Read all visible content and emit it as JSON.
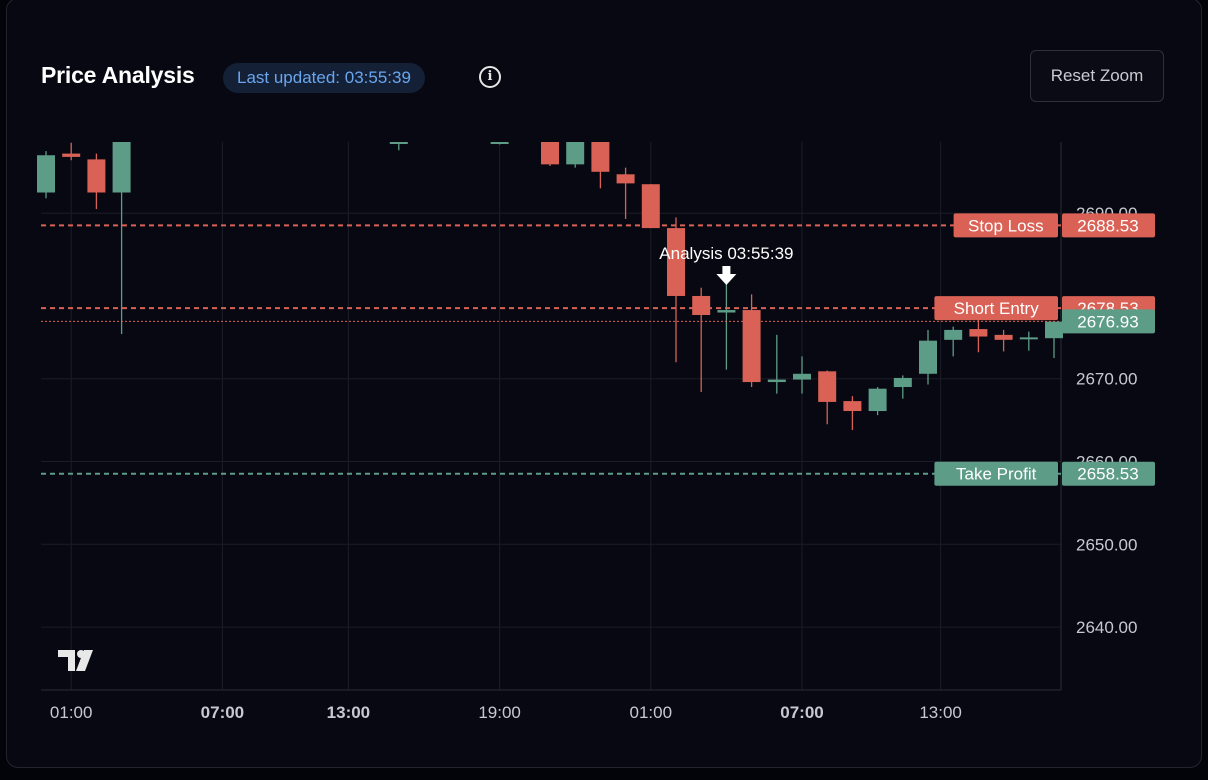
{
  "header": {
    "title": "Price Analysis",
    "updated_label": "Last updated: 03:55:39",
    "info_glyph": "i",
    "reset_label": "Reset Zoom"
  },
  "colors": {
    "up": "#5d9c86",
    "down": "#d96155",
    "grid": "#1a1d26",
    "axis_text": "#c7c9cf",
    "background": "#070812"
  },
  "chart_data": {
    "type": "candlestick",
    "title": "Price Analysis",
    "x_ticks": [
      {
        "label": "01:00",
        "bold": false
      },
      {
        "label": "07:00",
        "bold": true
      },
      {
        "label": "13:00",
        "bold": true
      },
      {
        "label": "19:00",
        "bold": false
      },
      {
        "label": "01:00",
        "bold": false
      },
      {
        "label": "07:00",
        "bold": true
      },
      {
        "label": "13:00",
        "bold": false
      }
    ],
    "x_tick_positions": [
      1,
      7,
      12,
      18,
      24,
      30,
      35.5
    ],
    "y_ticks": [
      "2690.00",
      "2670.00",
      "2660.00",
      "2650.00",
      "2640.00"
    ],
    "y_tick_values": [
      2690,
      2670,
      2660,
      2650,
      2640
    ],
    "ylim": [
      2632.4,
      2698.6
    ],
    "grid": true,
    "levels": [
      {
        "name": "Stop Loss",
        "value": 2688.53,
        "value_label": "2688.53",
        "color": "#d96155",
        "style": "dashed"
      },
      {
        "name": "Short Entry",
        "value": 2678.53,
        "value_label": "2678.53",
        "color": "#d96155",
        "style": "dashed"
      },
      {
        "name": "Take Profit",
        "value": 2658.53,
        "value_label": "2658.53",
        "color": "#5d9c86",
        "style": "dashed"
      }
    ],
    "current_price": {
      "value": 2676.93,
      "label": "2676.93",
      "color": "#5d9c86",
      "line_color": "#d96155"
    },
    "annotation": {
      "text": "Analysis 03:55:39",
      "candle_index": 27
    },
    "candles": [
      {
        "o": 2692.5,
        "h": 2697.5,
        "l": 2691.8,
        "c": 2697.0
      },
      {
        "o": 2697.2,
        "h": 2698.5,
        "l": 2696.4,
        "c": 2696.8
      },
      {
        "o": 2696.5,
        "h": 2697.2,
        "l": 2690.5,
        "c": 2692.5
      },
      {
        "o": 2692.5,
        "h": 2698.6,
        "l": 2675.4,
        "c": 2698.6
      },
      null,
      null,
      null,
      null,
      null,
      null,
      null,
      null,
      null,
      null,
      {
        "o": 2698.6,
        "h": 2698.6,
        "l": 2697.6,
        "c": 2698.6
      },
      null,
      null,
      null,
      {
        "o": 2698.6,
        "h": 2698.6,
        "l": 2698.3,
        "c": 2698.6
      },
      null,
      {
        "o": 2698.6,
        "h": 2698.6,
        "l": 2695.7,
        "c": 2695.9
      },
      {
        "o": 2695.9,
        "h": 2698.6,
        "l": 2695.5,
        "c": 2698.6
      },
      {
        "o": 2698.6,
        "h": 2698.6,
        "l": 2693.0,
        "c": 2695.0
      },
      {
        "o": 2694.7,
        "h": 2695.5,
        "l": 2689.3,
        "c": 2693.6
      },
      {
        "o": 2693.5,
        "h": 2693.5,
        "l": 2688.2,
        "c": 2688.2
      },
      {
        "o": 2688.2,
        "h": 2689.5,
        "l": 2672.0,
        "c": 2680.0
      },
      {
        "o": 2680.0,
        "h": 2681.0,
        "l": 2668.4,
        "c": 2677.7
      },
      {
        "o": 2678.0,
        "h": 2681.5,
        "l": 2671.1,
        "c": 2678.3
      },
      {
        "o": 2678.3,
        "h": 2680.2,
        "l": 2669.0,
        "c": 2669.6
      },
      {
        "o": 2669.6,
        "h": 2675.3,
        "l": 2668.2,
        "c": 2669.9
      },
      {
        "o": 2669.9,
        "h": 2672.7,
        "l": 2668.2,
        "c": 2670.6
      },
      {
        "o": 2670.9,
        "h": 2671.0,
        "l": 2664.5,
        "c": 2667.2
      },
      {
        "o": 2667.3,
        "h": 2667.9,
        "l": 2663.8,
        "c": 2666.1
      },
      {
        "o": 2666.1,
        "h": 2669.0,
        "l": 2665.6,
        "c": 2668.8
      },
      {
        "o": 2669.0,
        "h": 2670.4,
        "l": 2667.6,
        "c": 2670.1
      },
      {
        "o": 2670.6,
        "h": 2675.9,
        "l": 2669.3,
        "c": 2674.6
      },
      {
        "o": 2674.7,
        "h": 2676.3,
        "l": 2672.7,
        "c": 2675.9
      },
      {
        "o": 2676.0,
        "h": 2677.6,
        "l": 2673.2,
        "c": 2675.1
      },
      {
        "o": 2675.3,
        "h": 2675.9,
        "l": 2673.3,
        "c": 2674.7
      },
      {
        "o": 2674.9,
        "h": 2675.7,
        "l": 2673.4,
        "c": 2675.0
      },
      {
        "o": 2674.9,
        "h": 2676.5,
        "l": 2672.5,
        "c": 2676.9
      }
    ]
  }
}
